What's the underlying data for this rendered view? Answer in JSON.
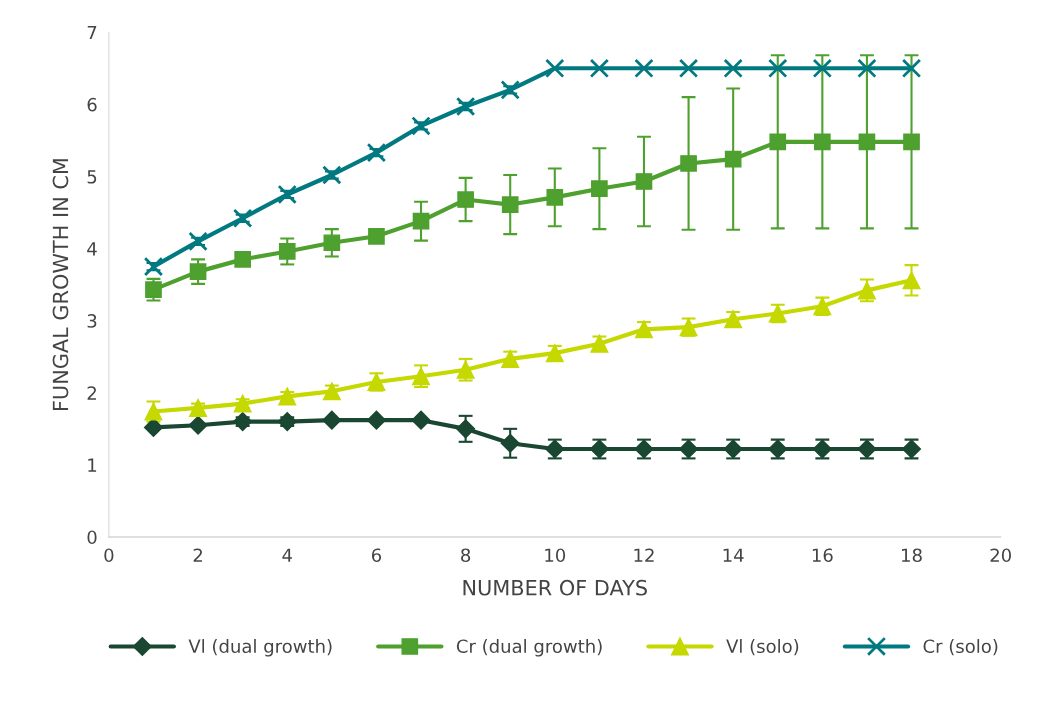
{
  "chart_data": {
    "type": "line",
    "xlabel": "NUMBER OF DAYS",
    "ylabel": "FUNGAL GROWTH IN CM",
    "x": [
      1,
      2,
      3,
      4,
      5,
      6,
      7,
      8,
      9,
      10,
      11,
      12,
      13,
      14,
      15,
      16,
      17,
      18
    ],
    "xlim": [
      0,
      20
    ],
    "xticks": [
      0,
      2,
      4,
      6,
      8,
      10,
      12,
      14,
      16,
      18,
      20
    ],
    "ylim": [
      0,
      7
    ],
    "yticks": [
      0,
      1,
      2,
      3,
      4,
      5,
      6,
      7
    ],
    "grid": false,
    "legend": "bottom",
    "line_style": "solid",
    "series": [
      {
        "name": "Vl (dual growth)",
        "color": "#1a4731",
        "marker": "diamond",
        "values": [
          1.52,
          1.55,
          1.6,
          1.6,
          1.62,
          1.62,
          1.62,
          1.5,
          1.3,
          1.22,
          1.22,
          1.22,
          1.22,
          1.22,
          1.22,
          1.22,
          1.22,
          1.22
        ],
        "errors": [
          null,
          null,
          0.06,
          0.06,
          null,
          null,
          null,
          0.18,
          0.2,
          0.13,
          0.13,
          0.13,
          0.13,
          0.13,
          0.13,
          0.13,
          0.13,
          0.13
        ]
      },
      {
        "name": "Cr (dual growth)",
        "color": "#4ea02f",
        "marker": "square",
        "values": [
          3.43,
          3.68,
          3.85,
          3.96,
          4.08,
          4.17,
          4.38,
          4.68,
          4.61,
          4.71,
          4.83,
          4.93,
          5.18,
          5.24,
          5.48,
          5.48,
          5.48,
          5.48
        ],
        "errors": [
          0.15,
          0.17,
          0.06,
          0.18,
          0.19,
          0.06,
          0.27,
          0.3,
          0.41,
          0.4,
          0.56,
          0.62,
          0.92,
          0.98,
          1.2,
          1.2,
          1.2,
          1.2
        ]
      },
      {
        "name": "Vl (solo)",
        "color": "#c5d800",
        "marker": "triangle",
        "values": [
          1.74,
          1.79,
          1.85,
          1.95,
          2.02,
          2.15,
          2.23,
          2.32,
          2.47,
          2.55,
          2.68,
          2.88,
          2.91,
          3.02,
          3.1,
          3.2,
          3.42,
          3.56
        ],
        "errors": [
          0.14,
          0.06,
          0.06,
          0.06,
          0.08,
          0.12,
          0.15,
          0.15,
          0.1,
          0.1,
          0.1,
          0.1,
          0.12,
          0.1,
          0.12,
          0.12,
          0.15,
          0.21
        ]
      },
      {
        "name": "Cr (solo)",
        "color": "#007a80",
        "marker": "cross",
        "values": [
          3.75,
          4.1,
          4.42,
          4.75,
          5.02,
          5.33,
          5.7,
          5.97,
          6.2,
          6.5,
          6.5,
          6.5,
          6.5,
          6.5,
          6.5,
          6.5,
          6.5,
          6.5
        ],
        "errors": [
          0.05,
          0.05,
          0.05,
          0.05,
          0.05,
          0.05,
          0.05,
          0.05,
          0.05,
          null,
          null,
          null,
          null,
          null,
          null,
          null,
          null,
          null
        ]
      }
    ]
  }
}
